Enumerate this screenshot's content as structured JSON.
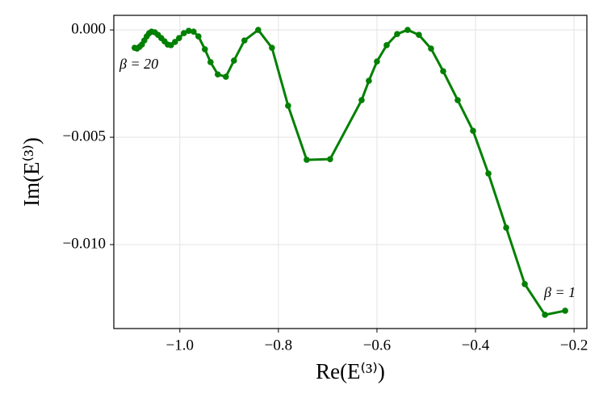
{
  "chart_data": {
    "type": "line",
    "xlabel": "Re(E⁽³⁾)",
    "ylabel": "Im(E⁽³⁾)",
    "annotations": [
      "β = 20",
      "β = 1"
    ],
    "x": [
      -1.0918,
      -1.0869,
      -1.082,
      -1.077,
      -1.0721,
      -1.0672,
      -1.0623,
      -1.0574,
      -1.0508,
      -1.0443,
      -1.0377,
      -1.0311,
      -1.0246,
      -1.018,
      -1.0098,
      -1.0016,
      -0.9918,
      -0.982,
      -0.9721,
      -0.9623,
      -0.9492,
      -0.9377,
      -0.923,
      -0.9066,
      -0.8902,
      -0.8689,
      -0.841,
      -0.8131,
      -0.7803,
      -0.7426,
      -0.6951,
      -0.6311,
      -0.6164,
      -0.6,
      -0.5803,
      -0.559,
      -0.5377,
      -0.5148,
      -0.4902,
      -0.4656,
      -0.4361,
      -0.4049,
      -0.3738,
      -0.3377,
      -0.3,
      -0.259,
      -0.218
    ],
    "series": [
      {
        "name": "Im(E⁽³⁾)",
        "color": "#008000",
        "values": [
          -0.00083,
          -0.00087,
          -0.00079,
          -0.00068,
          -0.00049,
          -0.0003,
          -0.00015,
          -8e-05,
          -0.00011,
          -0.00023,
          -0.00038,
          -0.00053,
          -0.00068,
          -0.00071,
          -0.00056,
          -0.00038,
          -0.00015,
          -4e-05,
          -8e-05,
          -0.0003,
          -0.0009,
          -0.0015,
          -0.00207,
          -0.00218,
          -0.00143,
          -0.00049,
          0,
          -0.00083,
          -0.00353,
          -0.00605,
          -0.00602,
          -0.00327,
          -0.00237,
          -0.00147,
          -0.00071,
          -0.00019,
          0,
          -0.00023,
          -0.00087,
          -0.00192,
          -0.00327,
          -0.0047,
          -0.00669,
          -0.00921,
          -0.01184,
          -0.01327,
          -0.01308
        ]
      }
    ],
    "xlim": [
      -1.134,
      -0.174
    ],
    "ylim": [
      -0.01391,
      0.00068
    ],
    "xticks": [
      {
        "value": -1.0,
        "label": "−1.0"
      },
      {
        "value": -0.8,
        "label": "−0.8"
      },
      {
        "value": -0.6,
        "label": "−0.6"
      },
      {
        "value": -0.4,
        "label": "−0.4"
      },
      {
        "value": -0.2,
        "label": "−0.2"
      }
    ],
    "yticks": [
      {
        "value": 0,
        "label": "0.000"
      },
      {
        "value": -0.005,
        "label": "−0.005"
      },
      {
        "value": -0.01,
        "label": "−0.010"
      }
    ],
    "grid": true
  }
}
